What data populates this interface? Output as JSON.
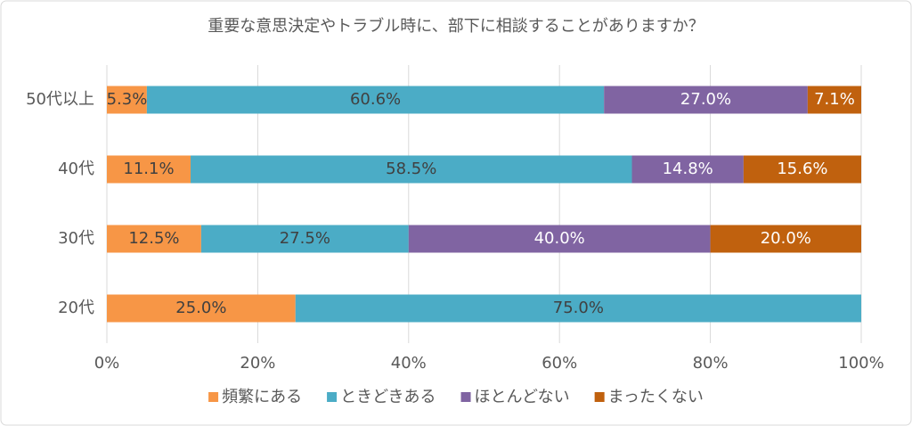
{
  "chart_data": {
    "type": "stacked_bar_horizontal",
    "title": "重要な意思決定やトラブル時に、部下に相談することがありますか？",
    "categories": [
      "50代以上",
      "40代",
      "30代",
      "20代"
    ],
    "series": [
      {
        "name": "頻繁にある",
        "color": "#f79646",
        "label_color": "#404040",
        "values": [
          5.3,
          11.1,
          12.5,
          25.0
        ],
        "value_labels": [
          "5.3%",
          "11.1%",
          "12.5%",
          "25.0%"
        ]
      },
      {
        "name": "ときどきある",
        "color": "#4bacc6",
        "label_color": "#404040",
        "values": [
          60.6,
          58.5,
          27.5,
          75.0
        ],
        "value_labels": [
          "60.6%",
          "58.5%",
          "27.5%",
          "75.0%"
        ]
      },
      {
        "name": "ほとんどない",
        "color": "#8064a2",
        "label_color": "#ffffff",
        "values": [
          27.0,
          14.8,
          40.0,
          null
        ],
        "value_labels": [
          "27.0%",
          "14.8%",
          "40.0%",
          null
        ]
      },
      {
        "name": "まったくない",
        "color": "#c0610e",
        "label_color": "#ffffff",
        "values": [
          7.1,
          15.6,
          20.0,
          null
        ],
        "value_labels": [
          "7.1%",
          "15.6%",
          "20.0%",
          null
        ]
      }
    ],
    "xlim": [
      0,
      100
    ],
    "xticks": [
      {
        "value": 0,
        "label": "0%"
      },
      {
        "value": 20,
        "label": "20%"
      },
      {
        "value": 40,
        "label": "40%"
      },
      {
        "value": 60,
        "label": "60%"
      },
      {
        "value": 80,
        "label": "80%"
      },
      {
        "value": 100,
        "label": "100%"
      }
    ],
    "grid": true,
    "legend": "bottom"
  }
}
